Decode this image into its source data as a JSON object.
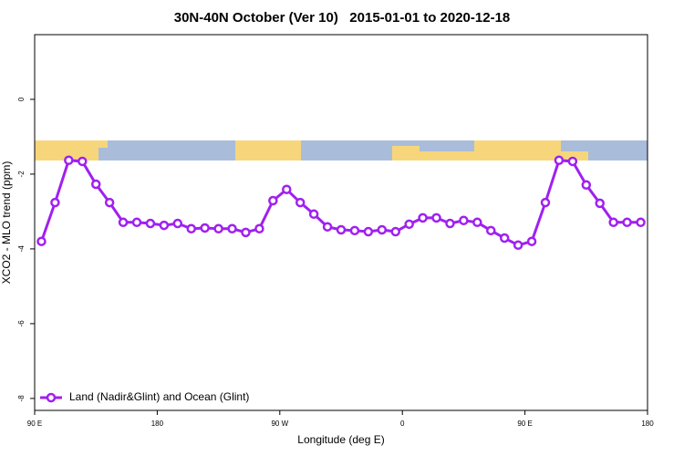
{
  "chart_data": {
    "type": "line",
    "title": "30N-40N October (Ver 10)   2015-01-01 to 2020-12-18",
    "xlabel": "Longitude (deg E)",
    "ylabel": "XCO2 - MLO trend (ppm)",
    "x": [
      95,
      105,
      115,
      125,
      135,
      145,
      155,
      165,
      175,
      185,
      195,
      205,
      215,
      225,
      235,
      245,
      255,
      265,
      275,
      285,
      295,
      305,
      315,
      325,
      335,
      345,
      355,
      365,
      375,
      385,
      395,
      405,
      415,
      425,
      435,
      445,
      455,
      465,
      475,
      485,
      495,
      505,
      515,
      525,
      535
    ],
    "series": [
      {
        "name": "Land (Nadir&Glint) and Ocean (Glint)",
        "color": "#a020f0",
        "values": [
          -3.8,
          -2.76,
          -1.63,
          -1.66,
          -2.27,
          -2.76,
          -3.29,
          -3.29,
          -3.32,
          -3.37,
          -3.32,
          -3.46,
          -3.44,
          -3.46,
          -3.46,
          -3.56,
          -3.46,
          -2.71,
          -2.41,
          -2.76,
          -3.07,
          -3.41,
          -3.49,
          -3.51,
          -3.54,
          -3.49,
          -3.54,
          -3.34,
          -3.17,
          -3.17,
          -3.32,
          -3.24,
          -3.29,
          -3.51,
          -3.71,
          -3.9,
          -3.8,
          -2.76,
          -1.63,
          -1.66,
          -2.29,
          -2.78,
          -3.29,
          -3.29,
          -3.29
        ]
      }
    ],
    "xlim": [
      90,
      540
    ],
    "xticks": [
      {
        "value": 90,
        "label": "90 E"
      },
      180,
      {
        "value": 270,
        "label": "90 W"
      },
      {
        "value": 360,
        "label": "0"
      },
      {
        "value": 450,
        "label": "90 E"
      },
      {
        "value": 540,
        "label": "180"
      }
    ],
    "ylim": [
      -8.32,
      1.73
    ],
    "yticks": [
      0,
      -2,
      -4,
      -6,
      -8
    ],
    "legend": "bottom-left"
  }
}
